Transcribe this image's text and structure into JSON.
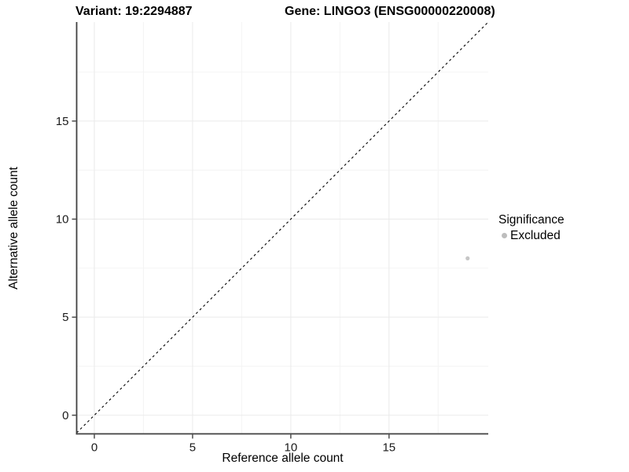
{
  "titles": {
    "variant": "Variant: 19:2294887",
    "gene": "Gene: LINGO3 (ENSG00000220008)"
  },
  "chart_data": {
    "type": "scatter",
    "title_left": "Variant: 19:2294887",
    "title_right": "Gene: LINGO3 (ENSG00000220008)",
    "xlabel": "Reference allele count",
    "ylabel": "Alternative allele count",
    "xlim": [
      -0.9,
      20.05
    ],
    "ylim": [
      -0.95,
      20.05
    ],
    "x_breaks": [
      0,
      5,
      10,
      15
    ],
    "y_breaks": [
      0,
      5,
      10,
      15
    ],
    "x_minor_breaks": [
      2.5,
      7.5,
      12.5,
      17.5
    ],
    "y_minor_breaks": [
      2.5,
      7.5,
      12.5,
      17.5
    ],
    "grid": true,
    "identity_line": {
      "style": "dashed",
      "slope": 1,
      "intercept": 0
    },
    "points": [
      {
        "x": 19,
        "y": 8,
        "significance": "Excluded"
      }
    ],
    "legend": {
      "title": "Significance",
      "position": "right",
      "items": [
        {
          "label": "Excluded",
          "color": "#bdbdbd"
        }
      ]
    },
    "colors": {
      "background": "#ffffff",
      "point": "#c6c6c6",
      "grid_major": "#eaeaea",
      "grid_minor": "#f4f4f4",
      "axis_line": "#404040",
      "tick_label": "#1a1a1a",
      "dashed_line": "#000000"
    }
  }
}
